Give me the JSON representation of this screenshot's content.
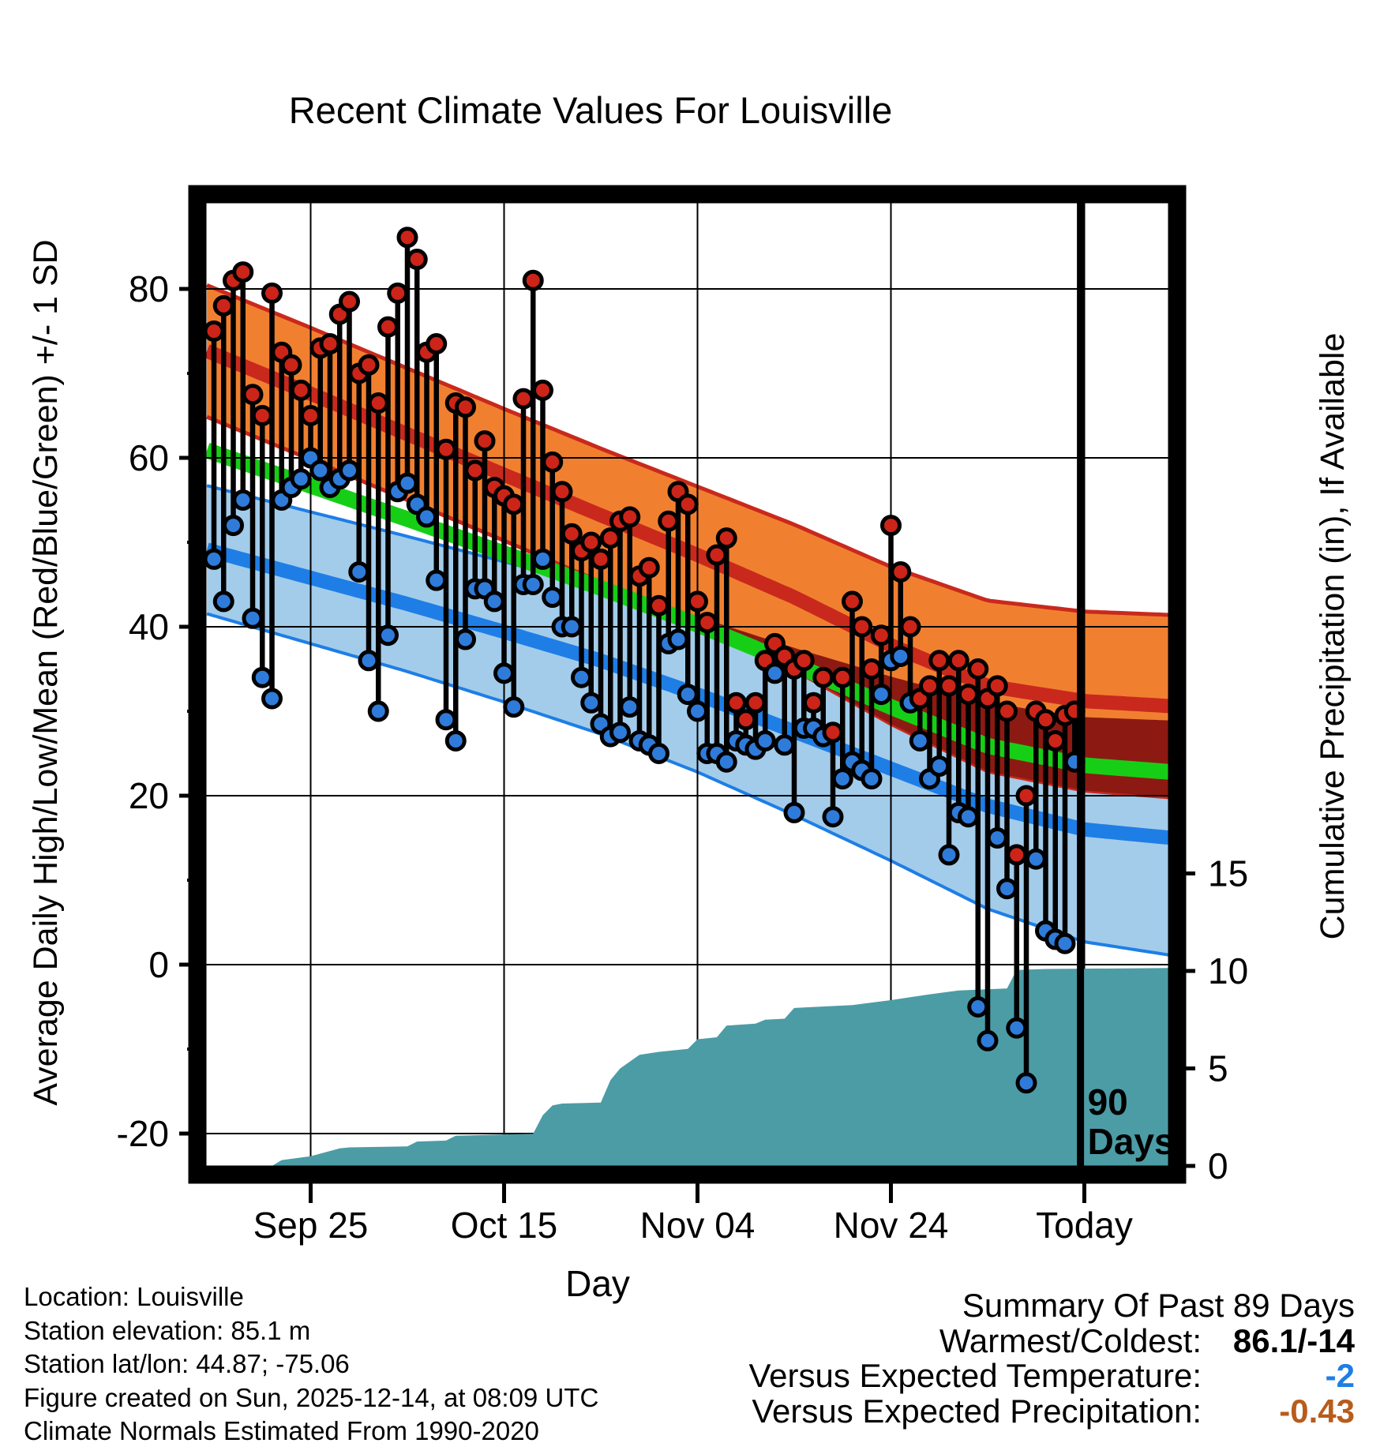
{
  "title": "Recent Climate Values For Louisville",
  "chart_data": {
    "type": "line",
    "title": "Recent Climate Values For Louisville",
    "xlabel": "Day",
    "ylabel_left": "Average Daily High/Low/Mean (Red/Blue/Green) +/- 1 SD",
    "ylabel_right": "Cumulative Precipitation (in), If Available",
    "x_axis": {
      "tick_days": [
        10,
        30,
        50,
        70,
        90
      ],
      "tick_labels": [
        "Sep 25",
        "Oct 15",
        "Nov 04",
        "Nov 24",
        "Today"
      ],
      "day_min": -0.73,
      "day_max": 98.7
    },
    "y_axis_left": {
      "ticks": [
        80,
        60,
        40,
        20,
        0,
        -20
      ],
      "minor_ticks": [
        70,
        50,
        30,
        10,
        -10
      ],
      "range": [
        -23.8,
        90.2
      ],
      "grid": true
    },
    "y_axis_right": {
      "ticks": [
        15,
        10,
        5,
        0
      ],
      "range": [
        0,
        49.4
      ],
      "grid": false
    },
    "annotation_90days": {
      "day": 89.6,
      "lines": [
        "90",
        "Days"
      ]
    },
    "normals": {
      "days": [
        0,
        10,
        20,
        30,
        40,
        50,
        60,
        70,
        80,
        90,
        99
      ],
      "high_mean": [
        72.3,
        67.6,
        62.8,
        58.0,
        53.2,
        48.5,
        43.5,
        37.8,
        33.0,
        31.2,
        30.6
      ],
      "high_sd": [
        7.8,
        7.8,
        7.8,
        7.8,
        7.9,
        8.1,
        8.6,
        9.3,
        10.1,
        10.6,
        10.8
      ],
      "low_mean": [
        48.9,
        45.8,
        42.7,
        39.4,
        36.0,
        32.0,
        27.6,
        23.2,
        18.8,
        16.0,
        15.0
      ],
      "low_sd": [
        7.6,
        7.8,
        8.0,
        8.3,
        8.7,
        9.2,
        9.9,
        10.9,
        12.2,
        13.3,
        13.9
      ]
    },
    "daily": {
      "start_day": 0,
      "high": [
        75,
        78,
        81,
        82,
        67.5,
        65,
        79.5,
        72.5,
        71,
        68,
        65,
        73,
        73.5,
        77,
        78.5,
        70,
        71,
        66.5,
        75.5,
        79.5,
        86.1,
        83.5,
        72.5,
        73.5,
        61,
        66.5,
        66,
        58.5,
        62,
        56.5,
        55.5,
        54.5,
        67,
        81,
        68,
        59.5,
        56,
        51,
        49,
        50,
        48,
        50.5,
        52.5,
        53,
        46,
        47,
        42.5,
        52.5,
        56,
        54.5,
        43,
        40.5,
        48.5,
        50.5,
        31,
        29,
        31,
        36,
        38,
        36.5,
        35,
        36,
        31,
        34,
        27.5,
        34,
        43,
        40,
        35,
        39,
        52,
        46.5,
        40,
        31.5,
        33,
        36,
        33,
        36,
        32,
        35,
        31.5,
        33,
        30,
        13,
        20,
        30,
        29,
        26.5,
        29.5,
        30
      ],
      "low": [
        48,
        43,
        52,
        55,
        41,
        34,
        31.5,
        55,
        56.5,
        57.5,
        60,
        58.5,
        56.5,
        57.5,
        58.5,
        46.5,
        36,
        30,
        39,
        56,
        57,
        54.5,
        53,
        45.5,
        29,
        26.5,
        38.5,
        44.5,
        44.5,
        43,
        34.5,
        30.5,
        45,
        45,
        48,
        43.5,
        40,
        40,
        34,
        31,
        28.5,
        27,
        27.5,
        30.5,
        26.5,
        26,
        25,
        38,
        38.5,
        32,
        30,
        25,
        25,
        24,
        26.5,
        26,
        25.5,
        26.5,
        34.5,
        26,
        18,
        28,
        28,
        27,
        17.5,
        22,
        24,
        23,
        22,
        32,
        36,
        36.5,
        31,
        26.5,
        22,
        23.5,
        13,
        18,
        17.5,
        -5,
        -9,
        15,
        9,
        -7.5,
        -14,
        12.5,
        4,
        3,
        2.5,
        24
      ]
    },
    "cumulative_precip": {
      "days": [
        0,
        6,
        7,
        10,
        13,
        14,
        20,
        21,
        24,
        25,
        33,
        34,
        35,
        36,
        40,
        41,
        42,
        44,
        46,
        49,
        50,
        52,
        53,
        56,
        57,
        59,
        60,
        66,
        70,
        74,
        77,
        82,
        83,
        86,
        98.7
      ],
      "values": [
        0,
        0,
        0.3,
        0.5,
        0.9,
        0.95,
        1.0,
        1.25,
        1.3,
        1.55,
        1.65,
        2.6,
        3.1,
        3.2,
        3.25,
        4.4,
        5.0,
        5.7,
        5.85,
        6.0,
        6.5,
        6.6,
        7.2,
        7.3,
        7.5,
        7.55,
        8.1,
        8.25,
        8.5,
        8.8,
        9.0,
        9.1,
        10.05,
        10.1,
        10.15
      ]
    },
    "colors": {
      "high_band": "#F08030",
      "high_mean_line": "#C9291D",
      "band_overlap": "#8C1A12",
      "mean_line": "#17CE17",
      "low_band": "#A3CCEA",
      "low_mean_line": "#1E7EE6",
      "high_dot": "#CC2418",
      "low_dot": "#2F7BD9",
      "stem": "#000000",
      "precip_area": "#4C9CA6",
      "grid": "#000000"
    }
  },
  "footer_info": [
    "Location: Louisville",
    "Station elevation: 85.1 m",
    "Station lat/lon: 44.87; -75.06",
    "Figure created on Sun, 2025-12-14, at 08:09 UTC",
    "Climate Normals Estimated From 1990-2020"
  ],
  "summary": {
    "title": "Summary Of Past 89 Days",
    "rows": [
      {
        "label": "Warmest/Coldest:",
        "value": "86.1/-14",
        "color": "#000000"
      },
      {
        "label": "Versus Expected Temperature:",
        "value": "-2",
        "color": "#1E7EE6"
      },
      {
        "label": "Versus Expected Precipitation:",
        "value": "-0.43",
        "color": "#B85C1C"
      }
    ]
  }
}
